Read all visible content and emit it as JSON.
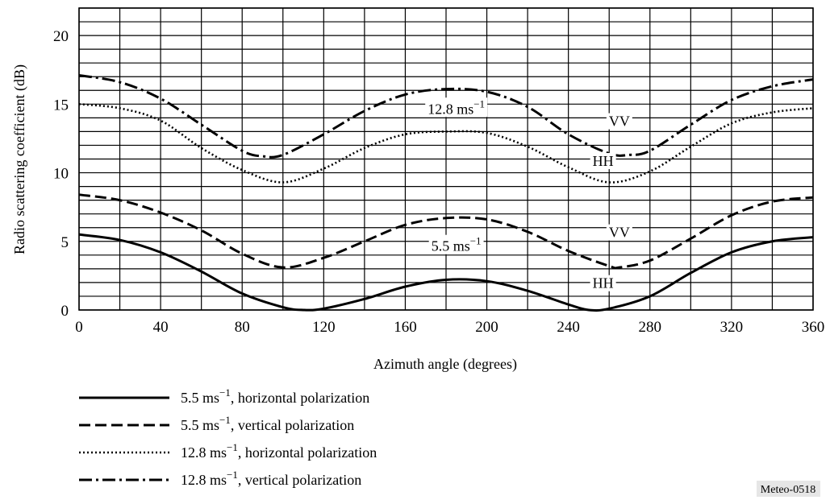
{
  "chart_data": {
    "type": "line",
    "xlabel": "Azimuth angle (degrees)",
    "ylabel": "Radio scattering coefficient (dB)",
    "xlim": [
      0,
      360
    ],
    "ylim": [
      0,
      22
    ],
    "x_ticks": [
      0,
      40,
      80,
      120,
      160,
      200,
      240,
      280,
      320,
      360
    ],
    "y_ticks": [
      0,
      5,
      10,
      15,
      20
    ],
    "x_grid_step": 20,
    "y_grid_step": 1,
    "grid": true,
    "series": [
      {
        "name": "5.5 ms⁻¹, horizontal polarization",
        "style": "solid",
        "x": [
          0,
          20,
          40,
          60,
          80,
          100,
          110,
          120,
          140,
          160,
          180,
          200,
          220,
          240,
          250,
          260,
          280,
          300,
          320,
          340,
          360
        ],
        "y": [
          5.5,
          5.1,
          4.2,
          2.8,
          1.2,
          0.2,
          0.0,
          0.1,
          0.8,
          1.7,
          2.2,
          2.1,
          1.4,
          0.4,
          0.0,
          0.1,
          1.0,
          2.7,
          4.2,
          5.0,
          5.3
        ]
      },
      {
        "name": "5.5 ms⁻¹, vertical polarization",
        "style": "dashed",
        "x": [
          0,
          20,
          40,
          60,
          80,
          100,
          120,
          140,
          160,
          180,
          200,
          220,
          240,
          260,
          265,
          280,
          300,
          320,
          340,
          360
        ],
        "y": [
          8.4,
          8.0,
          7.1,
          5.8,
          4.1,
          3.1,
          3.8,
          5.0,
          6.2,
          6.7,
          6.6,
          5.7,
          4.3,
          3.2,
          3.1,
          3.6,
          5.2,
          6.9,
          7.9,
          8.2
        ]
      },
      {
        "name": "12.8 ms⁻¹, horizontal polarization",
        "style": "dotted",
        "x": [
          0,
          20,
          40,
          60,
          80,
          100,
          120,
          140,
          160,
          180,
          200,
          220,
          240,
          260,
          280,
          300,
          320,
          340,
          360
        ],
        "y": [
          15.0,
          14.7,
          13.8,
          11.8,
          10.2,
          9.3,
          10.3,
          11.8,
          12.8,
          13.0,
          12.9,
          11.9,
          10.4,
          9.3,
          10.1,
          11.9,
          13.6,
          14.4,
          14.7
        ]
      },
      {
        "name": "12.8 ms⁻¹, vertical polarization",
        "style": "dashdot",
        "x": [
          0,
          20,
          40,
          60,
          80,
          90,
          100,
          120,
          140,
          160,
          180,
          200,
          220,
          240,
          260,
          270,
          280,
          300,
          320,
          340,
          360
        ],
        "y": [
          17.1,
          16.6,
          15.4,
          13.5,
          11.6,
          11.2,
          11.3,
          12.8,
          14.5,
          15.7,
          16.1,
          15.9,
          14.8,
          12.8,
          11.4,
          11.3,
          11.6,
          13.5,
          15.3,
          16.3,
          16.8
        ]
      }
    ],
    "annotations": [
      {
        "text": "12.8 ms",
        "sup": "−1",
        "x": 185,
        "y": 14.3
      },
      {
        "text": "VV",
        "x": 265,
        "y": 13.4
      },
      {
        "text": "HH",
        "x": 257,
        "y": 10.5
      },
      {
        "text": "5.5 ms",
        "sup": "−1",
        "x": 185,
        "y": 4.3
      },
      {
        "text": "VV",
        "x": 265,
        "y": 5.3
      },
      {
        "text": "HH",
        "x": 257,
        "y": 1.6
      }
    ],
    "legend": [
      {
        "text": "5.5 ms",
        "sup": "−1",
        "rest": ", horizontal polarization",
        "style": "solid"
      },
      {
        "text": "5.5 ms",
        "sup": "−1",
        "rest": ", vertical polarization",
        "style": "dashed"
      },
      {
        "text": "12.8 ms",
        "sup": "−1",
        "rest": ", horizontal polarization",
        "style": "dotted"
      },
      {
        "text": "12.8 ms",
        "sup": "−1",
        "rest": ", vertical polarization",
        "style": "dashdot"
      }
    ],
    "legend_position": "bottom-left",
    "figure_id": "Meteo-0518"
  }
}
